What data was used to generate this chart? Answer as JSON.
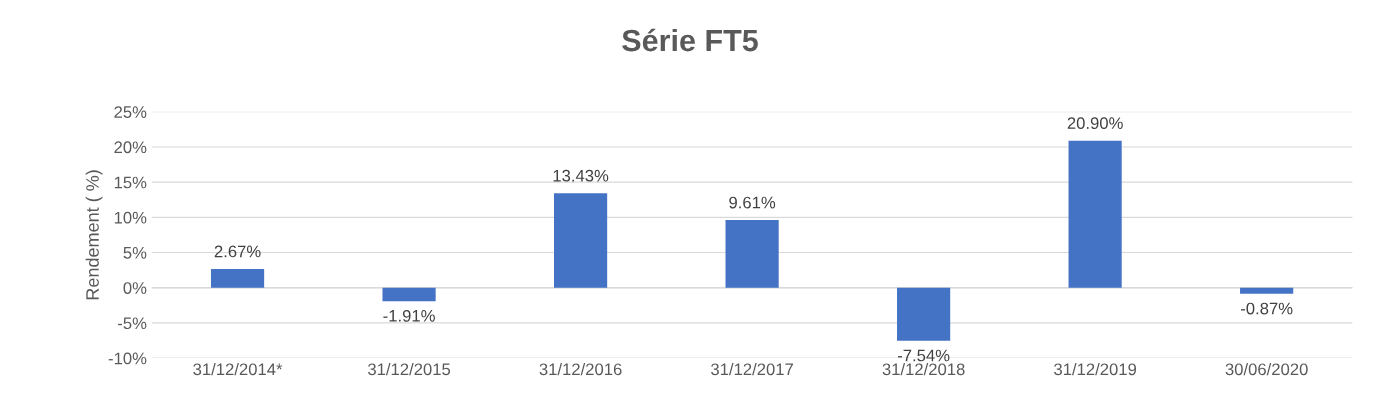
{
  "chart_data": {
    "type": "bar",
    "title": "Série FT5",
    "ylabel": "Rendement ( %)",
    "categories": [
      "31/12/2014*",
      "31/12/2015",
      "31/12/2016",
      "31/12/2017",
      "31/12/2018",
      "31/12/2019",
      "30/06/2020"
    ],
    "values": [
      2.67,
      -1.91,
      13.43,
      9.61,
      -7.54,
      20.9,
      -0.87
    ],
    "value_labels": [
      "2.67%",
      "-1.91%",
      "13.43%",
      "9.61%",
      "-7.54%",
      "20.90%",
      "-0.87%"
    ],
    "color": "#4472c4",
    "ylim": [
      -10,
      25
    ],
    "yticks": [
      {
        "value": -10,
        "label": "-10%"
      },
      {
        "value": -5,
        "label": "-5%"
      },
      {
        "value": 0,
        "label": "0%"
      },
      {
        "value": 5,
        "label": "5%"
      },
      {
        "value": 10,
        "label": "10%"
      },
      {
        "value": 15,
        "label": "15%"
      },
      {
        "value": 20,
        "label": "20%"
      },
      {
        "value": 25,
        "label": "25%"
      }
    ],
    "grid": "y",
    "legend": false
  }
}
